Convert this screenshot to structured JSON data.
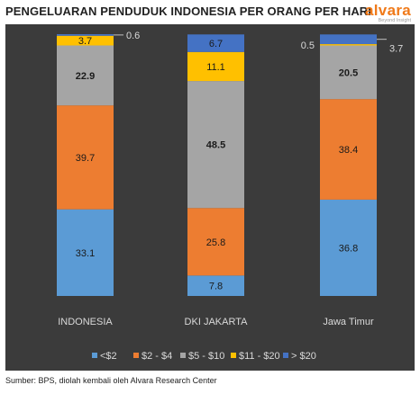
{
  "header": {
    "title": "PENGELUARAN PENDUDUK INDONESIA PER ORANG PER HARI",
    "logo_text": "alvara",
    "logo_tagline": "Beyond Insight"
  },
  "footer": {
    "source": "Sumber: BPS, diolah kembali oleh Alvara Research Center"
  },
  "colors": {
    "panel_bg": "#3b3b3b",
    "brand_orange": "#f07a1a"
  },
  "chart_data": {
    "type": "bar",
    "stacked": true,
    "normalized_total": 100,
    "categories": [
      "INDONESIA",
      "DKI JAKARTA",
      "Jawa Timur"
    ],
    "series": [
      {
        "name": "<$2",
        "color": "#5b9bd5",
        "values": [
          33.1,
          7.8,
          36.8
        ]
      },
      {
        "name": "$2 - $4",
        "color": "#ed7d31",
        "values": [
          39.7,
          25.8,
          38.4
        ]
      },
      {
        "name": "$5 - $10",
        "color": "#a5a5a5",
        "values": [
          22.9,
          48.5,
          20.5
        ]
      },
      {
        "name": "$11 - $20",
        "color": "#ffc000",
        "values": [
          3.7,
          11.1,
          0.5
        ]
      },
      {
        "name": "> $20",
        "color": "#4472c4",
        "values": [
          0.6,
          6.7,
          3.7
        ]
      }
    ],
    "bold_series": [
      "$5 - $10"
    ],
    "outside_labels": [
      {
        "category": "INDONESIA",
        "series": "> $20",
        "side": "right"
      },
      {
        "category": "Jawa Timur",
        "series": "$11 - $20",
        "side": "left"
      },
      {
        "category": "Jawa Timur",
        "series": "> $20",
        "side": "right"
      }
    ],
    "legend_position": "bottom",
    "grid": false
  }
}
